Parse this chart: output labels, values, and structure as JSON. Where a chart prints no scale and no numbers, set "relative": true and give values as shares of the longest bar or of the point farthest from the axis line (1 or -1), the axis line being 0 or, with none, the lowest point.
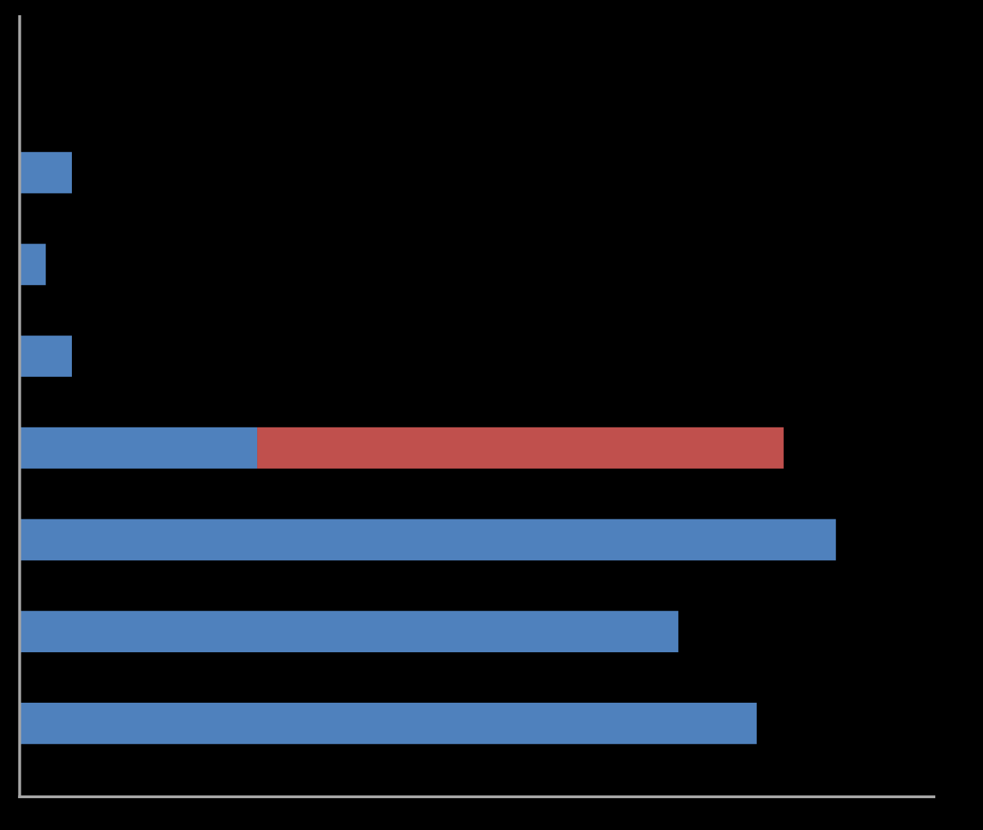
{
  "chart_data": {
    "type": "bar",
    "orientation": "horizontal",
    "stacked": true,
    "relative": true,
    "categories": [
      null,
      null,
      null,
      null,
      null,
      null,
      null
    ],
    "series": [
      {
        "color": "#4f81bd",
        "values": [
          0.064,
          0.032,
          0.064,
          0.291,
          1,
          0.807,
          0.903
        ]
      },
      {
        "color": "#c0504d",
        "values": [
          null,
          null,
          null,
          0.645,
          null,
          null,
          null
        ]
      }
    ],
    "grid": false,
    "legend": false
  }
}
